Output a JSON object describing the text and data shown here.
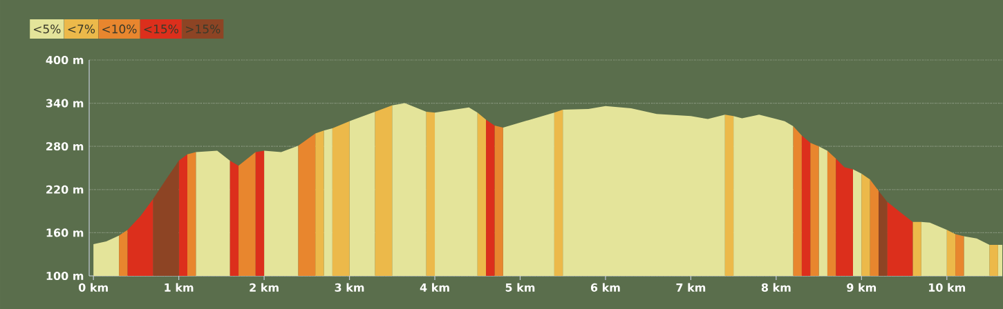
{
  "chart_data": {
    "type": "area",
    "legend": "top left",
    "grid": "y",
    "xlim": [
      -0.05,
      10.65
    ],
    "ylim": [
      100,
      400
    ],
    "xticks": [
      {
        "value": 0,
        "label": "0 km"
      },
      {
        "value": 1,
        "label": "1 km"
      },
      {
        "value": 2,
        "label": "2 km"
      },
      {
        "value": 3,
        "label": "3 km"
      },
      {
        "value": 4,
        "label": "4 km"
      },
      {
        "value": 5,
        "label": "5 km"
      },
      {
        "value": 6,
        "label": "6 km"
      },
      {
        "value": 7,
        "label": "7 km"
      },
      {
        "value": 8,
        "label": "8 km"
      },
      {
        "value": 9,
        "label": "9 km"
      },
      {
        "value": 10,
        "label": "10 km"
      }
    ],
    "yticks": [
      {
        "value": 100,
        "label": "100 m"
      },
      {
        "value": 160,
        "label": "160 m"
      },
      {
        "value": 220,
        "label": "220 m"
      },
      {
        "value": 280,
        "label": "280 m"
      },
      {
        "value": 340,
        "label": "340 m"
      },
      {
        "value": 400,
        "label": "400 m"
      }
    ],
    "series": [
      {
        "name": "<5%",
        "color": "#e4e49a",
        "x": [
          0,
          0.15,
          0.3,
          null,
          1.2,
          1.45,
          1.6,
          null,
          2.0,
          2.2,
          2.4,
          null,
          2.7,
          2.8,
          null,
          3.0,
          3.3,
          null,
          3.5,
          3.65,
          3.9,
          null,
          4.0,
          4.4,
          4.5,
          null,
          4.8,
          5.4,
          null,
          5.5,
          5.8,
          6.0,
          6.3,
          6.6,
          7.0,
          7.2,
          7.4,
          null,
          7.5,
          7.6,
          7.8,
          8.0,
          8.1,
          8.2,
          null,
          8.5,
          8.6,
          null,
          8.9,
          9.0,
          null,
          9.7,
          9.8,
          10.0,
          null,
          10.2,
          10.35,
          10.5,
          null,
          10.6,
          10.65
        ],
        "values": [
          144,
          148,
          156,
          null,
          272,
          274,
          260,
          null,
          274,
          272,
          281,
          null,
          302,
          305,
          null,
          315,
          328,
          null,
          337,
          340,
          328,
          null,
          327,
          334,
          327,
          null,
          306,
          327,
          null,
          331,
          332,
          336,
          333,
          325,
          322,
          318,
          324,
          null,
          322,
          319,
          324,
          318,
          315,
          308,
          null,
          280,
          274,
          null,
          248,
          242,
          null,
          175,
          174,
          164,
          null,
          155,
          152,
          143,
          null,
          143,
          143
        ]
      },
      {
        "name": "<7%",
        "color": "#ecb94a",
        "x": [
          2.6,
          2.7,
          null,
          2.8,
          3.0,
          null,
          3.3,
          3.5,
          null,
          3.9,
          4.0,
          null,
          4.5,
          4.6,
          null,
          5.4,
          5.5,
          null,
          7.4,
          7.5,
          null,
          9.0,
          9.1,
          null,
          9.6,
          9.7,
          null,
          10.0,
          10.1,
          null,
          10.5,
          10.6
        ],
        "values": [
          298,
          302,
          null,
          305,
          315,
          null,
          328,
          337,
          null,
          328,
          327,
          null,
          327,
          317,
          null,
          327,
          331,
          null,
          324,
          322,
          null,
          242,
          234,
          null,
          175,
          175,
          null,
          164,
          158,
          null,
          143,
          143
        ]
      },
      {
        "name": "<10%",
        "color": "#e8862e",
        "x": [
          0.3,
          0.4,
          null,
          1.1,
          1.2,
          null,
          1.7,
          1.9,
          null,
          2.4,
          2.6,
          null,
          4.7,
          4.8,
          null,
          8.2,
          8.3,
          null,
          8.4,
          8.5,
          null,
          8.6,
          8.7,
          null,
          9.1,
          9.2,
          null,
          10.1,
          10.2
        ],
        "values": [
          156,
          164,
          null,
          269,
          272,
          null,
          253,
          272,
          null,
          281,
          298,
          null,
          309,
          306,
          null,
          308,
          295,
          null,
          285,
          280,
          null,
          274,
          263,
          null,
          234,
          218,
          null,
          158,
          155
        ]
      },
      {
        "name": "<15%",
        "color": "#dc2f1c",
        "x": [
          0.4,
          0.55,
          0.7,
          null,
          1.0,
          1.1,
          null,
          1.6,
          1.7,
          null,
          1.9,
          2.0,
          null,
          4.6,
          4.7,
          null,
          8.3,
          8.4,
          null,
          8.7,
          8.8,
          8.9,
          null,
          9.3,
          9.45,
          9.6
        ],
        "values": [
          164,
          183,
          207,
          null,
          260,
          269,
          null,
          260,
          253,
          null,
          272,
          274,
          null,
          317,
          309,
          null,
          295,
          285,
          null,
          263,
          251,
          248,
          null,
          203,
          189,
          175
        ]
      },
      {
        "name": ">15%",
        "color": "#8d4424",
        "x": [
          0.7,
          0.85,
          1.0,
          null,
          9.2,
          9.3
        ],
        "values": [
          207,
          234,
          260,
          null,
          218,
          203
        ]
      }
    ]
  }
}
